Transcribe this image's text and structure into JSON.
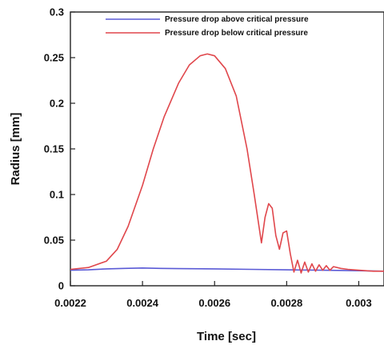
{
  "chart_data": {
    "type": "line",
    "xlabel": "Time [sec]",
    "ylabel": "Radius [mm]",
    "xlim": [
      0.0022,
      0.00307
    ],
    "ylim": [
      0,
      0.3
    ],
    "x_ticks": [
      0.0022,
      0.0024,
      0.0026,
      0.0028,
      0.003
    ],
    "x_tick_labels": [
      "0.0022",
      "0.0024",
      "0.0026",
      "0.0028",
      "0.003"
    ],
    "y_ticks": [
      0,
      0.05,
      0.1,
      0.15,
      0.2,
      0.25,
      0.3
    ],
    "y_tick_labels": [
      "0",
      "0.05",
      "0.1",
      "0.15",
      "0.2",
      "0.25",
      "0.3"
    ],
    "legend_position": "top",
    "grid": false,
    "series": [
      {
        "name": "Pressure drop above critical pressure",
        "color": "#5a5ad6",
        "x": [
          0.0022,
          0.00225,
          0.0023,
          0.00235,
          0.0024,
          0.00245,
          0.0025,
          0.0026,
          0.0027,
          0.0028,
          0.0029,
          0.003,
          0.00307
        ],
        "y": [
          0.017,
          0.0175,
          0.0185,
          0.019,
          0.0195,
          0.019,
          0.0188,
          0.0185,
          0.018,
          0.0175,
          0.017,
          0.0165,
          0.016
        ]
      },
      {
        "name": "Pressure drop below critical pressure",
        "color": "#e0474c",
        "x": [
          0.0022,
          0.00225,
          0.0023,
          0.00233,
          0.00236,
          0.0024,
          0.00243,
          0.00246,
          0.0025,
          0.00253,
          0.00256,
          0.00258,
          0.0026,
          0.00263,
          0.00266,
          0.00269,
          0.00271,
          0.00273,
          0.00274,
          0.00275,
          0.00276,
          0.00277,
          0.00278,
          0.00279,
          0.0028,
          0.00281,
          0.00282,
          0.00283,
          0.00284,
          0.00285,
          0.00286,
          0.00287,
          0.00288,
          0.00289,
          0.0029,
          0.00291,
          0.00292,
          0.00293,
          0.00295,
          0.00297,
          0.003,
          0.00304,
          0.00307
        ],
        "y": [
          0.018,
          0.02,
          0.027,
          0.04,
          0.065,
          0.11,
          0.15,
          0.185,
          0.222,
          0.242,
          0.252,
          0.254,
          0.252,
          0.238,
          0.208,
          0.15,
          0.1,
          0.047,
          0.075,
          0.09,
          0.085,
          0.055,
          0.04,
          0.058,
          0.06,
          0.035,
          0.015,
          0.028,
          0.014,
          0.026,
          0.015,
          0.024,
          0.016,
          0.023,
          0.017,
          0.022,
          0.017,
          0.021,
          0.019,
          0.018,
          0.017,
          0.016,
          0.016
        ]
      }
    ]
  }
}
